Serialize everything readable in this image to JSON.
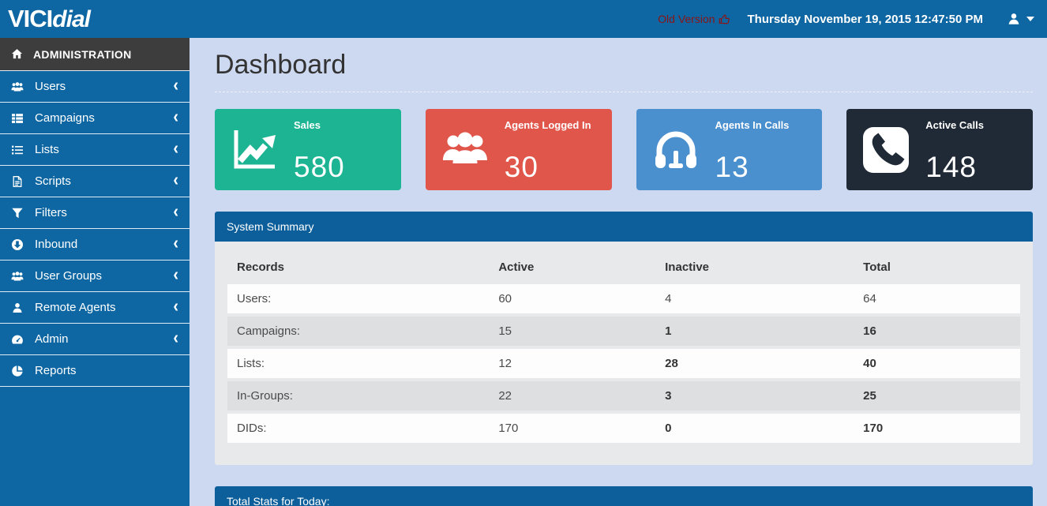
{
  "topbar": {
    "logo_vici": "VICI",
    "logo_dial": "dial",
    "old_version_label": "Old Version",
    "datetime": "Thursday November 19, 2015 12:47:50 PM"
  },
  "sidebar": {
    "header": "ADMINISTRATION",
    "items": [
      {
        "label": "Users",
        "icon": "users-icon",
        "chevron": true
      },
      {
        "label": "Campaigns",
        "icon": "th-list-icon",
        "chevron": true
      },
      {
        "label": "Lists",
        "icon": "list-icon",
        "chevron": true
      },
      {
        "label": "Scripts",
        "icon": "file-text-icon",
        "chevron": true
      },
      {
        "label": "Filters",
        "icon": "filter-icon",
        "chevron": true
      },
      {
        "label": "Inbound",
        "icon": "arrow-circle-down-icon",
        "chevron": true
      },
      {
        "label": "User Groups",
        "icon": "users-icon",
        "chevron": true
      },
      {
        "label": "Remote Agents",
        "icon": "user-icon",
        "chevron": true
      },
      {
        "label": "Admin",
        "icon": "dashboard-icon",
        "chevron": true
      },
      {
        "label": "Reports",
        "icon": "pie-chart-icon",
        "chevron": false
      }
    ]
  },
  "main": {
    "title": "Dashboard",
    "cards": [
      {
        "label": "Sales",
        "value": "580",
        "color": "#1cb493",
        "icon": "line-chart-icon"
      },
      {
        "label": "Agents Logged In",
        "value": "30",
        "color": "#e1564b",
        "icon": "agents-group-icon"
      },
      {
        "label": "Agents In Calls",
        "value": "13",
        "color": "#4a8fce",
        "icon": "headset-icon"
      },
      {
        "label": "Active Calls",
        "value": "148",
        "color": "#1f2a36",
        "icon": "phone-square-icon"
      }
    ],
    "system_summary": {
      "title": "System Summary",
      "columns": [
        "Records",
        "Active",
        "Inactive",
        "Total"
      ],
      "rows": [
        {
          "label": "Users:",
          "active": "60",
          "inactive": "4",
          "total": "64",
          "emphasis": false
        },
        {
          "label": "Campaigns:",
          "active": "15",
          "inactive": "1",
          "total": "16",
          "emphasis": true
        },
        {
          "label": "Lists:",
          "active": "12",
          "inactive": "28",
          "total": "40",
          "emphasis": true
        },
        {
          "label": "In-Groups:",
          "active": "22",
          "inactive": "3",
          "total": "25",
          "emphasis": true
        },
        {
          "label": "DIDs:",
          "active": "170",
          "inactive": "0",
          "total": "170",
          "emphasis": true
        }
      ]
    },
    "total_stats": {
      "title": "Total Stats for Today:"
    }
  },
  "theme": {
    "topbar_blue": "#0e67a3",
    "panel_header_blue": "#0d5f9b",
    "old_version_red": "#8b1515",
    "content_background": "#cdd9f0"
  }
}
